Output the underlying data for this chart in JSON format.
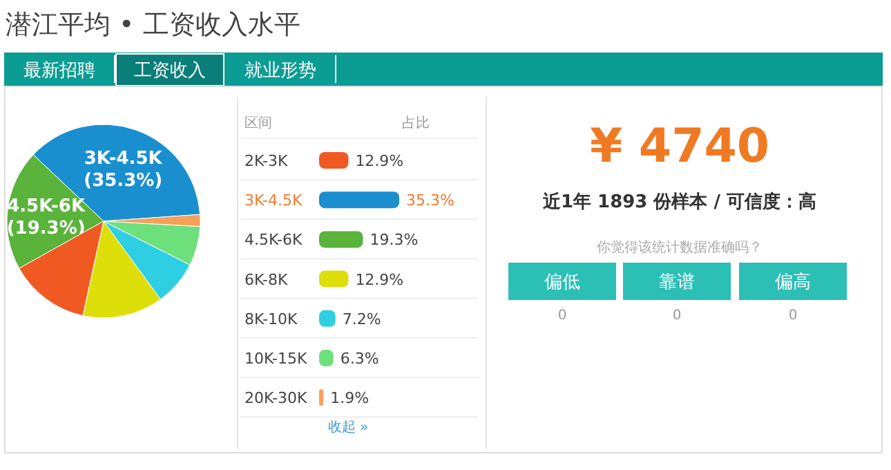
{
  "chart_data": [
    {
      "type": "other",
      "title": "潜江平均 • 工资收入水平",
      "categories": [
        "最新招聘",
        "工资收入",
        "就业形势"
      ]
    },
    {
      "type": "pie",
      "categories": [
        "3K-4.5K",
        "4.5K-6K",
        null,
        null,
        null,
        null,
        null
      ],
      "values": [
        35.3,
        19.3,
        12.9,
        12.9,
        7.2,
        6.3,
        1.9
      ],
      "colors": [
        "#1a8fcf",
        "#5ab33b",
        "#f05a22",
        "#dede0a",
        "#2ecfe2",
        "#6de07c",
        "#f7a05a"
      ],
      "value_labels": [
        "(35.3%)",
        "(19.3%)",
        null,
        null,
        null,
        null,
        null
      ]
    },
    {
      "type": "bar",
      "orientation": "horizontal",
      "ylabel": "区间",
      "xlabel": "占比",
      "categories": [
        "2K-3K",
        "3K-4.5K",
        "4.5K-6K",
        "6K-8K",
        "8K-10K",
        "10K-15K",
        "20K-30K"
      ],
      "values": [
        12.9,
        35.3,
        19.3,
        12.9,
        7.2,
        6.3,
        1.9
      ],
      "colors": [
        "#f05a22",
        "#1a8fcf",
        "#5ab33b",
        "#dede0a",
        "#2ecfe2",
        "#6de07c",
        "#f7a05a"
      ],
      "value_labels": [
        "12.9%",
        "35.3%",
        "19.3%",
        "12.9%",
        "7.2%",
        "6.3%",
        "1.9%"
      ],
      "annotations": [
        "收起 »"
      ]
    },
    {
      "type": "other",
      "title": "¥ 4740",
      "subtitle": "近1年 1893 份样本 / 可信度：高",
      "annotations": [
        "你觉得该统计数据准确吗？"
      ],
      "categories": [
        "偏低",
        "靠谱",
        "偏高"
      ],
      "values": [
        0,
        0,
        0
      ],
      "value_labels": [
        "0",
        "0",
        "0"
      ]
    }
  ]
}
